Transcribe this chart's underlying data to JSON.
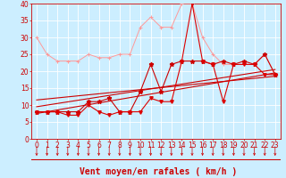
{
  "xlabel": "Vent moyen/en rafales ( km/h )",
  "bg_color": "#cceeff",
  "grid_color": "#ffffff",
  "xlim": [
    -0.5,
    23.5
  ],
  "ylim": [
    0,
    40
  ],
  "yticks": [
    0,
    5,
    10,
    15,
    20,
    25,
    30,
    35,
    40
  ],
  "xticks": [
    0,
    1,
    2,
    3,
    4,
    5,
    6,
    7,
    8,
    9,
    10,
    11,
    12,
    13,
    14,
    15,
    16,
    17,
    18,
    19,
    20,
    21,
    22,
    23
  ],
  "x": [
    0,
    1,
    2,
    3,
    4,
    5,
    6,
    7,
    8,
    9,
    10,
    11,
    12,
    13,
    14,
    15,
    16,
    17,
    18,
    19,
    20,
    21,
    22,
    23
  ],
  "line_pink_y": [
    30,
    25,
    23,
    23,
    23,
    25,
    24,
    24,
    25,
    25,
    33,
    36,
    33,
    33,
    40,
    40,
    30,
    25,
    22,
    22,
    22,
    22,
    25,
    19
  ],
  "line_pink_color": "#ff9999",
  "line_red1_y": [
    8,
    8,
    8,
    8,
    8,
    11,
    11,
    12,
    8,
    8,
    14,
    22,
    14,
    22,
    23,
    23,
    23,
    22,
    23,
    22,
    23,
    22,
    25,
    19
  ],
  "line_red1_color": "#cc0000",
  "line_red2_y": [
    8,
    8,
    8,
    7,
    7,
    10,
    8,
    7,
    8,
    8,
    8,
    12,
    11,
    11,
    23,
    40,
    23,
    22,
    11,
    22,
    22,
    22,
    19,
    19
  ],
  "line_red2_color": "#dd0000",
  "trend1_start": 7.5,
  "trend1_end": 19.5,
  "trend2_start": 9.5,
  "trend2_end": 20.5,
  "trend3_start": 11.5,
  "trend3_end": 18.5,
  "xlabel_color": "#cc0000",
  "xlabel_fontsize": 7,
  "tick_color": "#cc0000",
  "tick_fontsize": 5.5,
  "spine_color": "#cc0000",
  "arrow_color": "#cc0000"
}
